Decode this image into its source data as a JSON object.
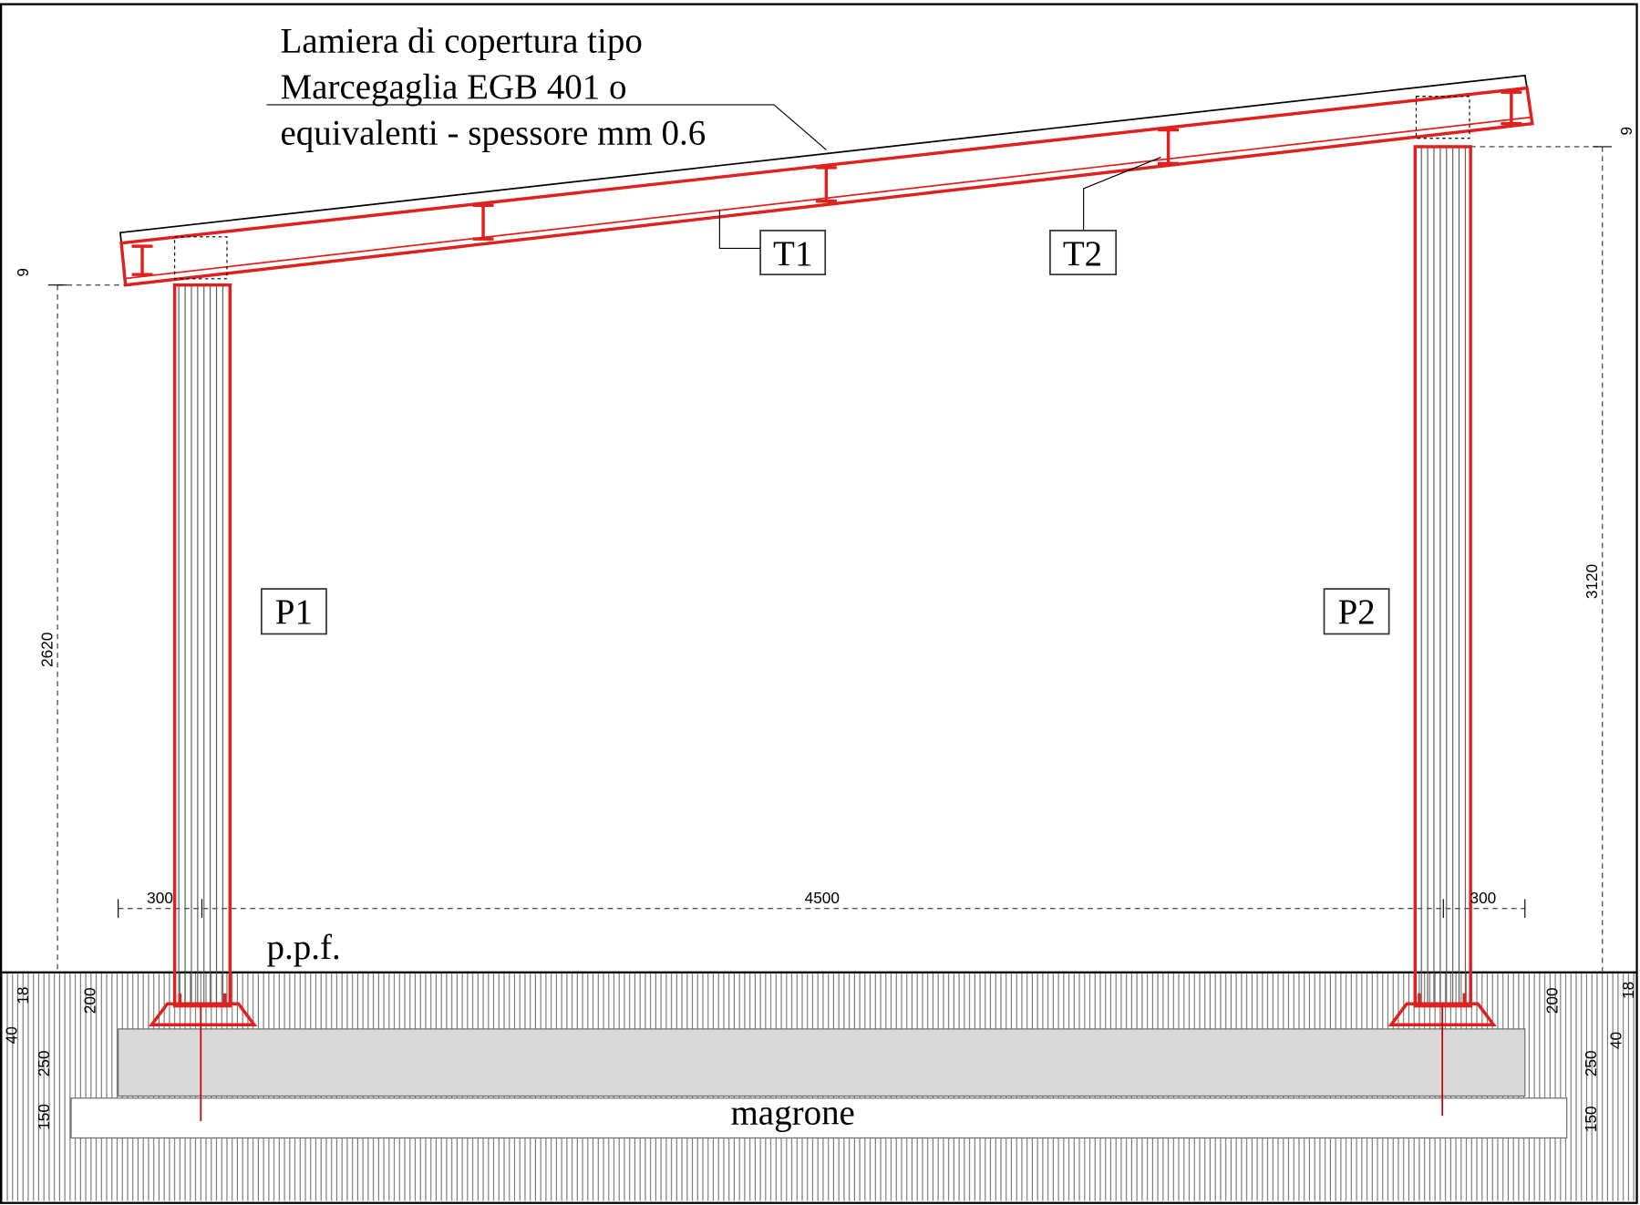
{
  "note": {
    "lines": [
      "Lamiera di copertura tipo",
      "Marcegaglia EGB 401 o",
      "equivalenti - spessore mm 0.6"
    ]
  },
  "labels": {
    "beams": [
      "T1",
      "T2"
    ],
    "columns": [
      "P1",
      "P2"
    ],
    "floor": "p.p.f.",
    "base": "magrone"
  },
  "dimensions": {
    "roof_offset_left": 9,
    "roof_offset_right": 9,
    "height_left": 2620,
    "height_right": 3120,
    "span": [
      300,
      4500,
      300
    ],
    "left": {
      "top": 18,
      "plate": 200,
      "layer": 40,
      "foundation": 250,
      "lean": 150
    },
    "right": {
      "top": 18,
      "plate": 200,
      "layer": 40,
      "foundation": 250,
      "lean": 150
    }
  }
}
